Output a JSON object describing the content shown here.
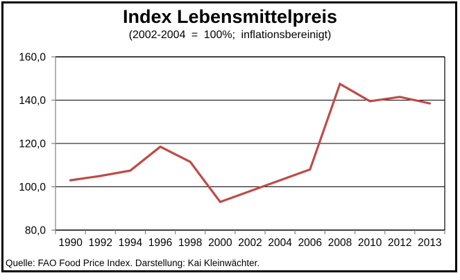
{
  "chart": {
    "title": "Index Lebensmittelpreis",
    "subtitle": "(2002-2004 = 100%; inflationsbereinigt)"
  },
  "footer": {
    "source": "Quelle: FAO Food Price Index. Darstellung: Kai Kleinwächter."
  },
  "colors": {
    "line": "#BE4B48",
    "gridline": "#000000",
    "axis": "#808080",
    "frame_border": "#000000"
  },
  "chart_data": {
    "type": "line",
    "title": "Index Lebensmittelpreis",
    "subtitle": "(2002-2004 = 100%; inflationsbereinigt)",
    "series_name": "Index Lebensmittelpreis",
    "categories": [
      "1990",
      "1992",
      "1994",
      "1996",
      "1998",
      "2000",
      "2002",
      "2004",
      "2006",
      "2008",
      "2010",
      "2012",
      "2013"
    ],
    "values": [
      103,
      105,
      107.5,
      118.5,
      111.5,
      93,
      98,
      103,
      108,
      147.5,
      139.5,
      141.5,
      138.5
    ],
    "xlabel": "",
    "ylabel": "",
    "ylim": [
      80,
      160
    ],
    "yticks": [
      80,
      100,
      120,
      140,
      160
    ],
    "ytick_labels": [
      "80,0",
      "100,0",
      "120,0",
      "140,0",
      "160,0"
    ],
    "grid": true,
    "legend": false,
    "line_color": "#BE4B48"
  }
}
